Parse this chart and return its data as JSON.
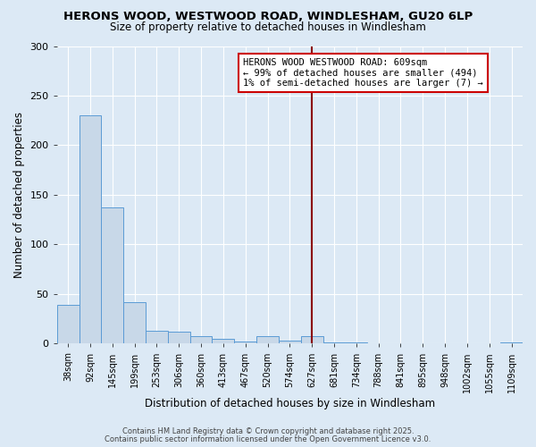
{
  "title1": "HERONS WOOD, WESTWOOD ROAD, WINDLESHAM, GU20 6LP",
  "title2": "Size of property relative to detached houses in Windlesham",
  "xlabel": "Distribution of detached houses by size in Windlesham",
  "ylabel": "Number of detached properties",
  "bar_labels": [
    "38sqm",
    "92sqm",
    "145sqm",
    "199sqm",
    "253sqm",
    "306sqm",
    "360sqm",
    "413sqm",
    "467sqm",
    "520sqm",
    "574sqm",
    "627sqm",
    "681sqm",
    "734sqm",
    "788sqm",
    "841sqm",
    "895sqm",
    "948sqm",
    "1002sqm",
    "1055sqm",
    "1109sqm"
  ],
  "bar_values": [
    39,
    230,
    137,
    42,
    13,
    12,
    8,
    5,
    2,
    8,
    3,
    8,
    1,
    1,
    0,
    0,
    0,
    0,
    0,
    0,
    1
  ],
  "bar_color": "#c8d8e8",
  "bar_edge_color": "#5b9bd5",
  "background_color": "#dce9f5",
  "vline_x_index": 11,
  "vline_color": "#8b0000",
  "ylim": [
    0,
    300
  ],
  "yticks": [
    0,
    50,
    100,
    150,
    200,
    250,
    300
  ],
  "annotation_title": "HERONS WOOD WESTWOOD ROAD: 609sqm",
  "annotation_line1": "← 99% of detached houses are smaller (494)",
  "annotation_line2": "1% of semi-detached houses are larger (7) →",
  "annotation_box_color": "#ffffff",
  "annotation_border_color": "#cc0000",
  "footer1": "Contains HM Land Registry data © Crown copyright and database right 2025.",
  "footer2": "Contains public sector information licensed under the Open Government Licence v3.0."
}
